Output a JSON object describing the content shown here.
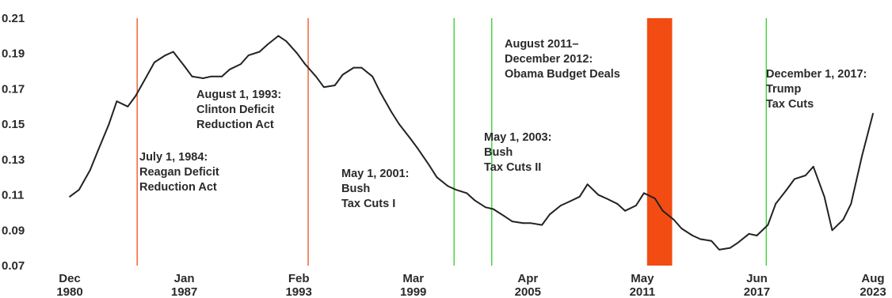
{
  "chart_data": {
    "type": "line",
    "title": "",
    "xlabel": "",
    "ylabel": "",
    "ylim": [
      0.07,
      0.21
    ],
    "xlim": [
      "1980-12",
      "2023-08"
    ],
    "grid": false,
    "legend": "none",
    "y_ticks": [
      "0.21",
      "0.19",
      "0.17",
      "0.15",
      "0.13",
      "0.11",
      "0.09",
      "0.07"
    ],
    "x_ticks": [
      {
        "date": "1980-12",
        "month": "Dec",
        "year": "1980"
      },
      {
        "date": "1987-01",
        "month": "Jan",
        "year": "1987"
      },
      {
        "date": "1993-02",
        "month": "Feb",
        "year": "1993"
      },
      {
        "date": "1999-03",
        "month": "Mar",
        "year": "1999"
      },
      {
        "date": "2005-04",
        "month": "Apr",
        "year": "2005"
      },
      {
        "date": "2011-05",
        "month": "May",
        "year": "2011"
      },
      {
        "date": "2017-06",
        "month": "Jun",
        "year": "2017"
      },
      {
        "date": "2023-08",
        "month": "Aug",
        "year": "2023"
      }
    ],
    "series": [
      {
        "color": "#222222",
        "points": [
          [
            "1980-12",
            0.109
          ],
          [
            "1981-06",
            0.113
          ],
          [
            "1982-01",
            0.124
          ],
          [
            "1982-06",
            0.135
          ],
          [
            "1983-01",
            0.15
          ],
          [
            "1983-06",
            0.163
          ],
          [
            "1984-01",
            0.16
          ],
          [
            "1984-06",
            0.166
          ],
          [
            "1985-01",
            0.177
          ],
          [
            "1985-06",
            0.185
          ],
          [
            "1986-01",
            0.189
          ],
          [
            "1986-06",
            0.191
          ],
          [
            "1987-01",
            0.183
          ],
          [
            "1987-06",
            0.177
          ],
          [
            "1988-01",
            0.176
          ],
          [
            "1988-06",
            0.177
          ],
          [
            "1989-01",
            0.177
          ],
          [
            "1989-06",
            0.181
          ],
          [
            "1990-01",
            0.184
          ],
          [
            "1990-06",
            0.189
          ],
          [
            "1991-01",
            0.191
          ],
          [
            "1991-06",
            0.195
          ],
          [
            "1992-01",
            0.2
          ],
          [
            "1992-06",
            0.197
          ],
          [
            "1993-01",
            0.19
          ],
          [
            "1993-06",
            0.184
          ],
          [
            "1994-01",
            0.177
          ],
          [
            "1994-06",
            0.171
          ],
          [
            "1995-01",
            0.172
          ],
          [
            "1995-06",
            0.178
          ],
          [
            "1996-01",
            0.182
          ],
          [
            "1996-06",
            0.182
          ],
          [
            "1997-01",
            0.177
          ],
          [
            "1997-06",
            0.168
          ],
          [
            "1998-01",
            0.157
          ],
          [
            "1998-06",
            0.15
          ],
          [
            "1999-01",
            0.142
          ],
          [
            "1999-06",
            0.136
          ],
          [
            "2000-01",
            0.127
          ],
          [
            "2000-06",
            0.12
          ],
          [
            "2001-01",
            0.115
          ],
          [
            "2001-06",
            0.113
          ],
          [
            "2002-01",
            0.111
          ],
          [
            "2002-06",
            0.107
          ],
          [
            "2003-01",
            0.103
          ],
          [
            "2003-06",
            0.102
          ],
          [
            "2004-01",
            0.098
          ],
          [
            "2004-06",
            0.095
          ],
          [
            "2005-01",
            0.094
          ],
          [
            "2005-06",
            0.094
          ],
          [
            "2006-01",
            0.093
          ],
          [
            "2006-06",
            0.099
          ],
          [
            "2007-01",
            0.104
          ],
          [
            "2007-06",
            0.106
          ],
          [
            "2008-01",
            0.109
          ],
          [
            "2008-06",
            0.116
          ],
          [
            "2009-01",
            0.11
          ],
          [
            "2009-06",
            0.108
          ],
          [
            "2010-01",
            0.105
          ],
          [
            "2010-06",
            0.101
          ],
          [
            "2011-01",
            0.104
          ],
          [
            "2011-06",
            0.111
          ],
          [
            "2012-01",
            0.108
          ],
          [
            "2012-06",
            0.101
          ],
          [
            "2013-01",
            0.096
          ],
          [
            "2013-06",
            0.091
          ],
          [
            "2014-01",
            0.087
          ],
          [
            "2014-06",
            0.085
          ],
          [
            "2015-01",
            0.084
          ],
          [
            "2015-06",
            0.079
          ],
          [
            "2016-01",
            0.08
          ],
          [
            "2016-06",
            0.083
          ],
          [
            "2017-01",
            0.088
          ],
          [
            "2017-06",
            0.087
          ],
          [
            "2018-01",
            0.093
          ],
          [
            "2018-06",
            0.105
          ],
          [
            "2019-01",
            0.113
          ],
          [
            "2019-06",
            0.119
          ],
          [
            "2020-01",
            0.121
          ],
          [
            "2020-06",
            0.126
          ],
          [
            "2021-01",
            0.109
          ],
          [
            "2021-06",
            0.09
          ],
          [
            "2022-01",
            0.096
          ],
          [
            "2022-06",
            0.105
          ],
          [
            "2023-01",
            0.132
          ],
          [
            "2023-08",
            0.156
          ]
        ]
      }
    ],
    "event_lines": [
      {
        "date": "1984-07",
        "color": "#f05a28"
      },
      {
        "date": "1993-08",
        "color": "#f05a28"
      },
      {
        "date": "2001-05",
        "color": "#3fd13a"
      },
      {
        "date": "2003-05",
        "color": "#3fd13a"
      },
      {
        "date": "2017-12",
        "color": "#3fd13a"
      }
    ],
    "event_band": {
      "start": "2011-08",
      "end": "2012-12",
      "color": "#f24c12"
    },
    "annotations": [
      {
        "id": "reagan",
        "lines": [
          "July 1, 1984:",
          "Reagan Deficit",
          "Reduction Act"
        ]
      },
      {
        "id": "clinton",
        "lines": [
          "August 1, 1993:",
          "Clinton Deficit",
          "Reduction Act"
        ]
      },
      {
        "id": "bush1",
        "lines": [
          "May 1, 2001:",
          "Bush",
          "Tax Cuts I"
        ]
      },
      {
        "id": "bush2",
        "lines": [
          "May 1, 2003:",
          "Bush",
          "Tax Cuts II"
        ]
      },
      {
        "id": "obama",
        "lines": [
          "August 2011–",
          "December 2012:",
          "Obama Budget Deals"
        ]
      },
      {
        "id": "trump",
        "lines": [
          "December 1, 2017:",
          "Trump",
          "Tax Cuts"
        ]
      }
    ]
  }
}
